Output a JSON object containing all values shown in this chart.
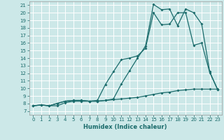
{
  "xlabel": "Humidex (Indice chaleur)",
  "bg_color": "#cce8e8",
  "grid_color": "#ffffff",
  "line_color": "#1a6b6b",
  "xlim": [
    -0.5,
    23.5
  ],
  "ylim": [
    6.5,
    21.5
  ],
  "xticks": [
    0,
    1,
    2,
    3,
    4,
    5,
    6,
    7,
    8,
    9,
    10,
    11,
    12,
    13,
    14,
    15,
    16,
    17,
    18,
    19,
    20,
    21,
    22,
    23
  ],
  "yticks": [
    7,
    8,
    9,
    10,
    11,
    12,
    13,
    14,
    15,
    16,
    17,
    18,
    19,
    20,
    21
  ],
  "line1_x": [
    0,
    1,
    2,
    3,
    4,
    5,
    6,
    7,
    8,
    9,
    10,
    11,
    12,
    13,
    14,
    15,
    16,
    17,
    18,
    19,
    20,
    21,
    22,
    23
  ],
  "line1_y": [
    7.7,
    7.8,
    7.7,
    7.7,
    8.1,
    8.3,
    8.3,
    8.3,
    8.3,
    8.4,
    8.5,
    8.6,
    8.7,
    8.8,
    9.0,
    9.2,
    9.4,
    9.5,
    9.7,
    9.8,
    9.9,
    9.9,
    9.9,
    9.9
  ],
  "line2_x": [
    0,
    1,
    2,
    3,
    4,
    5,
    6,
    7,
    8,
    9,
    10,
    11,
    12,
    13,
    14,
    15,
    16,
    17,
    18,
    19,
    20,
    21,
    22,
    23
  ],
  "line2_y": [
    7.7,
    7.8,
    7.7,
    8.0,
    8.3,
    8.4,
    8.4,
    8.3,
    8.4,
    10.5,
    12.2,
    13.8,
    14.0,
    14.3,
    15.3,
    20.0,
    18.4,
    18.5,
    20.0,
    20.0,
    15.7,
    16.0,
    12.1,
    9.8
  ],
  "line3_x": [
    0,
    1,
    2,
    3,
    4,
    5,
    6,
    7,
    8,
    9,
    10,
    11,
    12,
    13,
    14,
    15,
    16,
    17,
    18,
    19,
    20,
    21,
    22,
    23
  ],
  "line3_y": [
    7.7,
    7.8,
    7.7,
    8.0,
    8.3,
    8.4,
    8.4,
    8.3,
    8.3,
    8.4,
    8.6,
    10.6,
    12.3,
    14.0,
    15.6,
    21.1,
    20.4,
    20.5,
    18.3,
    20.5,
    20.0,
    18.5,
    12.2,
    9.8
  ],
  "tick_fontsize": 5,
  "xlabel_fontsize": 6,
  "marker_size": 2.0,
  "line_width": 0.9
}
